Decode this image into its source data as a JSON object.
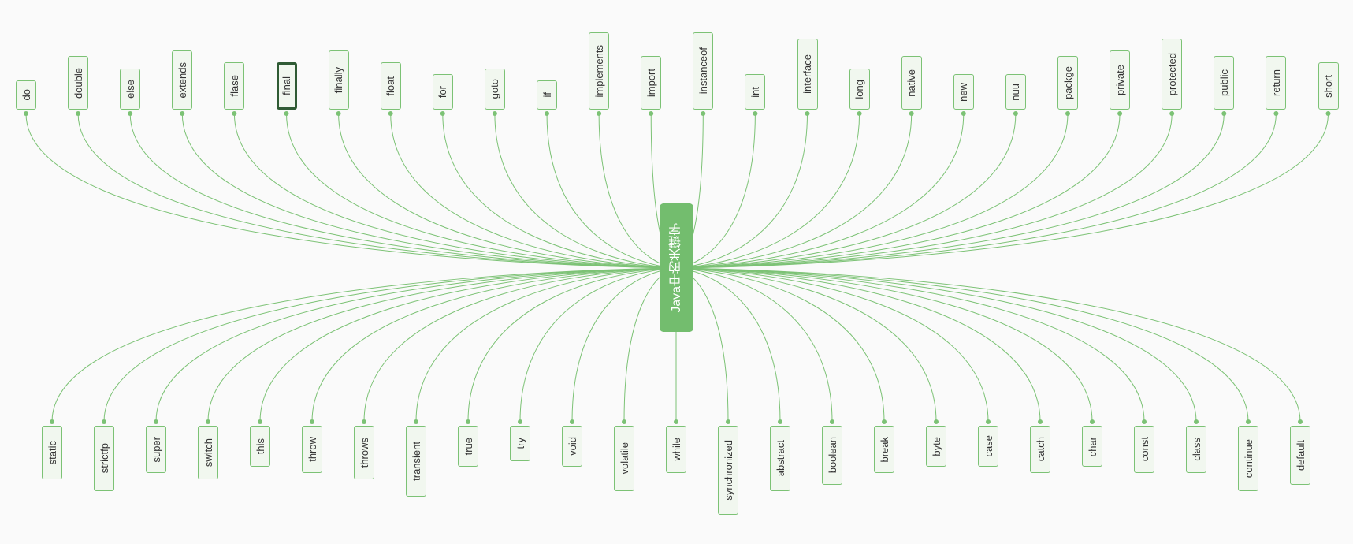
{
  "root": {
    "label": "Java中的关键字"
  },
  "top_keywords": [
    "do",
    "double",
    "else",
    "extends",
    "flase",
    "final",
    "finally",
    "float",
    "for",
    "goto",
    "if",
    "implements",
    "import",
    "instanceof",
    "int",
    "interface",
    "long",
    "native",
    "new",
    "nuu",
    "packge",
    "private",
    "protected",
    "public",
    "return",
    "short"
  ],
  "bottom_keywords": [
    "static",
    "strictfp",
    "super",
    "switch",
    "this",
    "throw",
    "throws",
    "transient",
    "true",
    "try",
    "void",
    "volatile",
    "while",
    "synchronized",
    "abstract",
    "boolean",
    "break",
    "byte",
    "case",
    "catch",
    "char",
    "const",
    "class",
    "continue",
    "default"
  ],
  "selected": "final",
  "colors": {
    "edge": "#7cc275",
    "node_border": "#7cc275",
    "node_fill": "#f1f7ef",
    "root_fill": "#73bd6e",
    "selected_border": "#2f5b34",
    "background": "#fafafa"
  }
}
